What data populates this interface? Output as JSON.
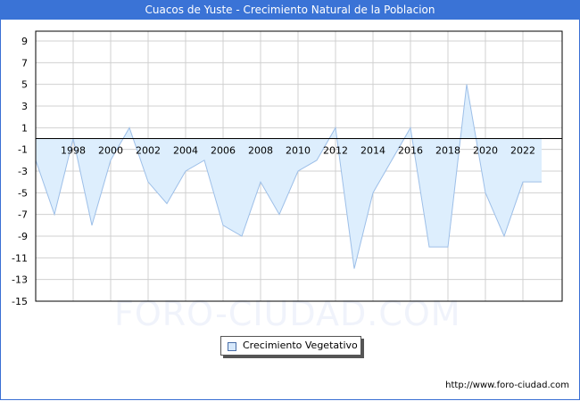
{
  "title": "Cuacos de Yuste - Crecimiento Natural de la Poblacion",
  "watermark": "FORO-CIUDAD.COM",
  "footer_url": "http://www.foro-ciudad.com",
  "legend": {
    "label": "Crecimiento Vegetativo"
  },
  "colors": {
    "titlebar": "#3a73d6",
    "fill": "#ddeefd",
    "line": "#9dbfe8",
    "grid": "#d0d0d0"
  },
  "chart_data": {
    "type": "area",
    "title": "Cuacos de Yuste - Crecimiento Natural de la Poblacion",
    "xlabel": "",
    "ylabel": "",
    "ylim": [
      -15,
      10
    ],
    "yticks": [
      9,
      7,
      5,
      3,
      1,
      -1,
      -3,
      -5,
      -7,
      -9,
      -11,
      -13,
      -15
    ],
    "xtick_labels": [
      "1998",
      "2000",
      "2002",
      "2004",
      "2006",
      "2008",
      "2010",
      "2012",
      "2014",
      "2016",
      "2018",
      "2020",
      "2022"
    ],
    "grid": true,
    "legend_position": "bottom",
    "x": [
      1996,
      1997,
      1998,
      1999,
      2000,
      2001,
      2002,
      2003,
      2004,
      2005,
      2006,
      2007,
      2008,
      2009,
      2010,
      2011,
      2012,
      2013,
      2014,
      2015,
      2016,
      2017,
      2018,
      2019,
      2020,
      2021,
      2022,
      2023
    ],
    "series": [
      {
        "name": "Crecimiento Vegetativo",
        "values": [
          -2,
          -7,
          0,
          -8,
          -2,
          1,
          -4,
          -6,
          -3,
          -2,
          -8,
          -9,
          -4,
          -7,
          -3,
          -2,
          1,
          -12,
          -5,
          -2,
          1,
          -10,
          -10,
          5,
          -5,
          -9,
          -4,
          -4
        ]
      }
    ]
  }
}
